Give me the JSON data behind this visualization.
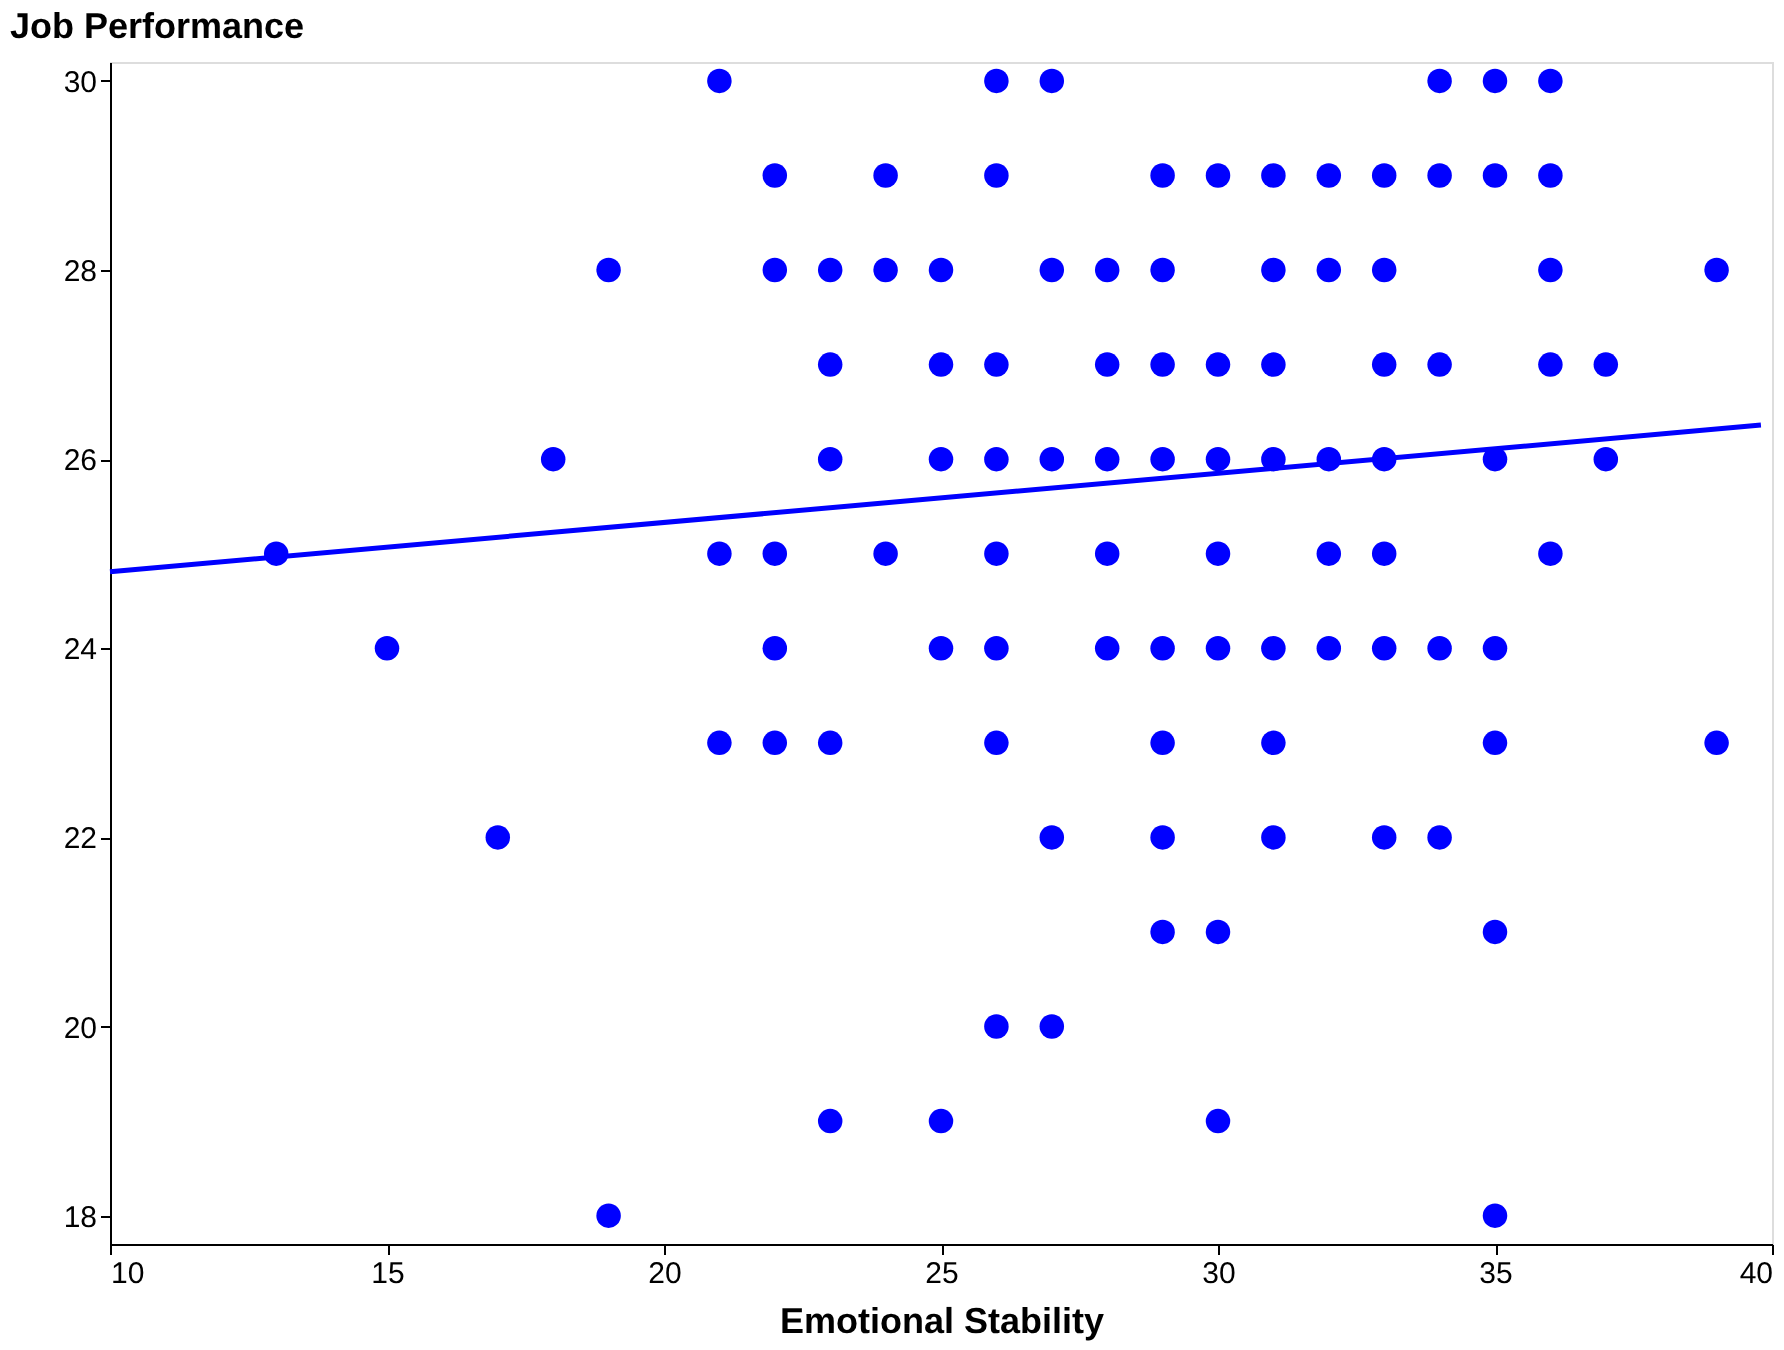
{
  "chart_data": {
    "type": "scatter",
    "ylabel": "Job Performance",
    "xlabel": "Emotional Stability",
    "xlim": [
      10,
      40
    ],
    "xticks": [
      10,
      15,
      20,
      25,
      30,
      35,
      40
    ],
    "ylim": [
      17.7,
      30.2
    ],
    "yticks": [
      18,
      20,
      22,
      24,
      26,
      28,
      30
    ],
    "grid": false,
    "series": [
      {
        "marker": "circle",
        "color": "#0000ff",
        "x": [
          13,
          15,
          17,
          18,
          19,
          19,
          21,
          21,
          21,
          22,
          22,
          22,
          22,
          22,
          23,
          23,
          23,
          23,
          23,
          24,
          24,
          24,
          25,
          25,
          25,
          25,
          25,
          26,
          26,
          26,
          26,
          26,
          26,
          26,
          26,
          27,
          27,
          27,
          27,
          27,
          28,
          28,
          28,
          28,
          28,
          29,
          29,
          29,
          29,
          29,
          29,
          29,
          29,
          30,
          30,
          30,
          30,
          30,
          30,
          30,
          31,
          31,
          31,
          31,
          31,
          31,
          31,
          32,
          32,
          32,
          32,
          32,
          33,
          33,
          33,
          33,
          33,
          33,
          33,
          34,
          34,
          34,
          34,
          34,
          35,
          35,
          35,
          35,
          35,
          35,
          35,
          36,
          36,
          36,
          36,
          36,
          37,
          37,
          39,
          39
        ],
        "values": [
          25,
          24,
          22,
          26,
          28,
          18,
          30,
          25,
          23,
          29,
          28,
          25,
          24,
          23,
          28,
          27,
          26,
          23,
          19,
          29,
          28,
          25,
          28,
          27,
          26,
          24,
          19,
          30,
          29,
          27,
          26,
          25,
          24,
          23,
          20,
          30,
          28,
          26,
          22,
          20,
          28,
          27,
          26,
          25,
          24,
          29,
          28,
          27,
          26,
          24,
          23,
          22,
          21,
          29,
          27,
          26,
          25,
          24,
          21,
          19,
          29,
          28,
          27,
          26,
          24,
          23,
          22,
          29,
          28,
          26,
          25,
          24,
          29,
          28,
          27,
          26,
          25,
          24,
          22,
          30,
          29,
          27,
          24,
          22,
          30,
          29,
          26,
          24,
          23,
          21,
          18,
          30,
          29,
          28,
          27,
          25,
          27,
          26,
          28,
          23
        ]
      },
      {
        "type": "line",
        "marker": "none",
        "color": "#0000ff",
        "x": [
          10,
          39.8
        ],
        "values": [
          24.81,
          26.36
        ]
      }
    ]
  }
}
